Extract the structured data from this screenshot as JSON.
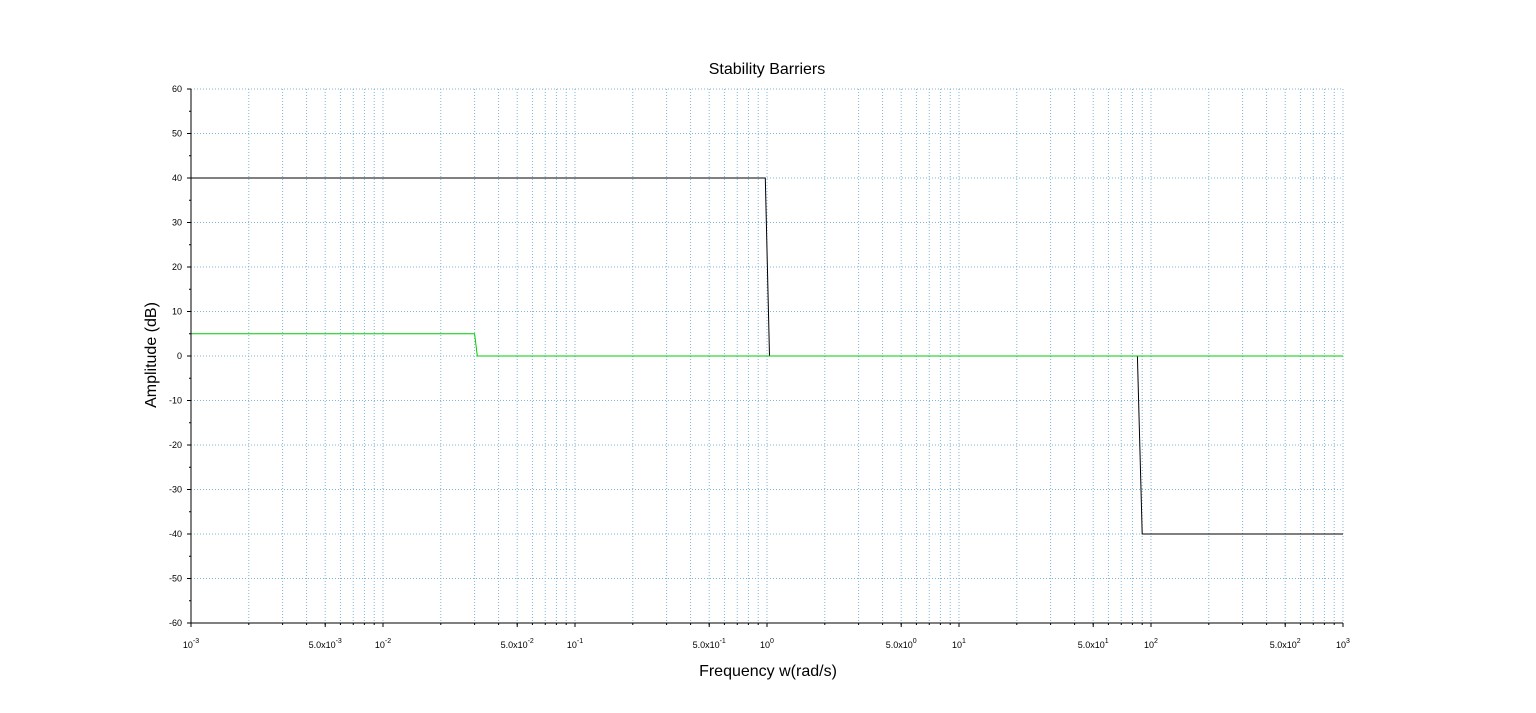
{
  "chart_data": {
    "type": "line",
    "title": "Stability Barriers",
    "xlabel": "Frequency w(rad/s)",
    "ylabel": "Amplitude (dB)",
    "xscale": "log",
    "xlim": [
      0.001,
      1000
    ],
    "ylim": [
      -60,
      60
    ],
    "grid": true,
    "grid_color": "#7fb5d6",
    "y_ticks": [
      60,
      50,
      40,
      30,
      20,
      10,
      0,
      -10,
      -20,
      -30,
      -40,
      -50,
      -60
    ],
    "x_ticks": [
      {
        "value": 0.001,
        "base": "10",
        "exp": "-3"
      },
      {
        "value": 0.005,
        "base": "5.0x10",
        "exp": "-3"
      },
      {
        "value": 0.01,
        "base": "10",
        "exp": "-2"
      },
      {
        "value": 0.05,
        "base": "5.0x10",
        "exp": "-2"
      },
      {
        "value": 0.1,
        "base": "10",
        "exp": "-1"
      },
      {
        "value": 0.5,
        "base": "5.0x10",
        "exp": "-1"
      },
      {
        "value": 1,
        "base": "10",
        "exp": "0"
      },
      {
        "value": 5,
        "base": "5.0x10",
        "exp": "0"
      },
      {
        "value": 10,
        "base": "10",
        "exp": "1"
      },
      {
        "value": 50,
        "base": "5.0x10",
        "exp": "1"
      },
      {
        "value": 100,
        "base": "10",
        "exp": "2"
      },
      {
        "value": 500,
        "base": "5.0x10",
        "exp": "2"
      },
      {
        "value": 1000,
        "base": "10",
        "exp": "3"
      }
    ],
    "series": [
      {
        "color": "#000000",
        "points": [
          [
            0.001,
            40
          ],
          [
            0.98,
            40
          ],
          [
            1.03,
            0
          ],
          [
            85,
            0
          ],
          [
            90,
            -40
          ],
          [
            1000,
            -40
          ]
        ]
      },
      {
        "color": "#00cc00",
        "points": [
          [
            0.001,
            5
          ],
          [
            0.03,
            5
          ],
          [
            0.031,
            0
          ],
          [
            1000,
            0
          ]
        ]
      }
    ]
  }
}
